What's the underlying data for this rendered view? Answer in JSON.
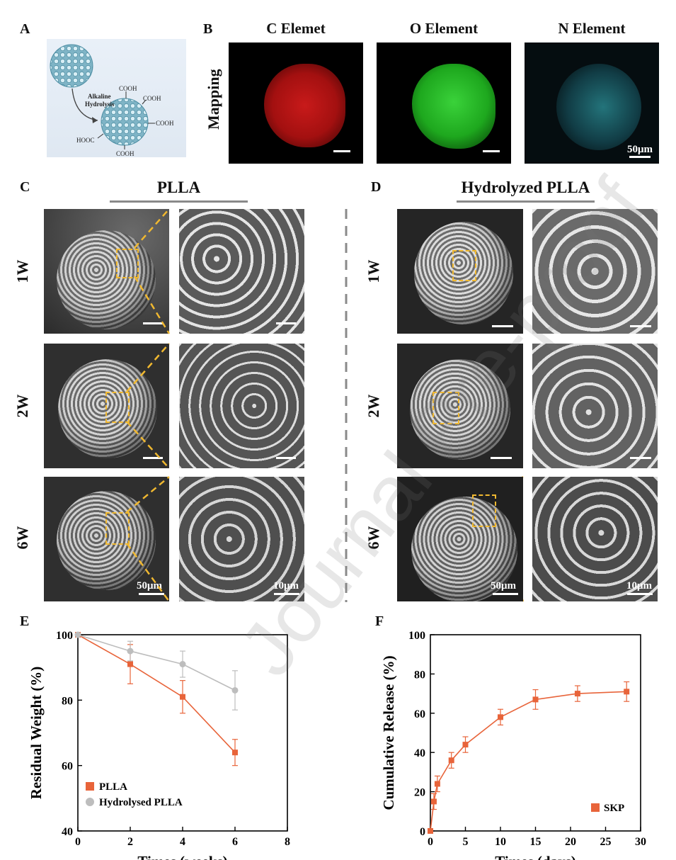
{
  "panels": {
    "A": {
      "label": "A",
      "process_label_1": "Alkaline",
      "process_label_2": "Hydrolysis",
      "groups": [
        "COOH",
        "COOH",
        "COOH",
        "HOOC",
        "COOH"
      ]
    },
    "B": {
      "label": "B",
      "row_label": "Mapping",
      "maps": [
        {
          "title": "C Elemet",
          "color": "#d01010"
        },
        {
          "title": "O Element",
          "color": "#18c018"
        },
        {
          "title": "N Element",
          "color": "#20c0c8"
        }
      ],
      "scale_label": "50μm"
    },
    "C": {
      "label": "C",
      "title": "PLLA",
      "rows": [
        "1W",
        "2W",
        "6W"
      ],
      "scale_low": "50μm",
      "scale_high": "10μm"
    },
    "D": {
      "label": "D",
      "title": "Hydrolyzed PLLA",
      "rows": [
        "1W",
        "2W",
        "6W"
      ],
      "scale_low": "50μm",
      "scale_high": "10μm"
    },
    "E": {
      "label": "E"
    },
    "F": {
      "label": "F"
    }
  },
  "watermark": "Journal Pre-proof",
  "chart_data": [
    {
      "type": "line",
      "panel": "E",
      "xlabel": "Times (weeks)",
      "ylabel": "Residual Weight (%)",
      "xlim": [
        0,
        8
      ],
      "ylim": [
        40,
        100
      ],
      "xticks": [
        0,
        2,
        4,
        6,
        8
      ],
      "yticks": [
        40,
        60,
        80,
        100
      ],
      "legend_position": "bottom-left",
      "series": [
        {
          "name": "PLLA",
          "color": "#e8643a",
          "marker": "square",
          "x": [
            0,
            2,
            4,
            6
          ],
          "y": [
            100,
            91,
            81,
            64
          ],
          "err": [
            0,
            6,
            5,
            4
          ]
        },
        {
          "name": "Hydrolysed PLLA",
          "color": "#bdbdbd",
          "marker": "circle",
          "x": [
            0,
            2,
            4,
            6
          ],
          "y": [
            100,
            95,
            91,
            83
          ],
          "err": [
            0,
            3,
            4,
            6
          ]
        }
      ]
    },
    {
      "type": "line",
      "panel": "F",
      "xlabel": "Times (days)",
      "ylabel": "Cumulative Release (%)",
      "xlim": [
        0,
        30
      ],
      "ylim": [
        0,
        100
      ],
      "xticks": [
        0,
        5,
        10,
        15,
        20,
        25,
        30
      ],
      "yticks": [
        0,
        20,
        40,
        60,
        80,
        100
      ],
      "legend_position": "bottom-right",
      "series": [
        {
          "name": "SKP",
          "color": "#e8643a",
          "marker": "square",
          "x": [
            0,
            0.5,
            1,
            3,
            5,
            10,
            15,
            21,
            28
          ],
          "y": [
            0,
            15,
            24,
            36,
            44,
            58,
            67,
            70,
            71
          ],
          "err": [
            0,
            4,
            4,
            4,
            4,
            4,
            5,
            4,
            5
          ]
        }
      ]
    }
  ]
}
